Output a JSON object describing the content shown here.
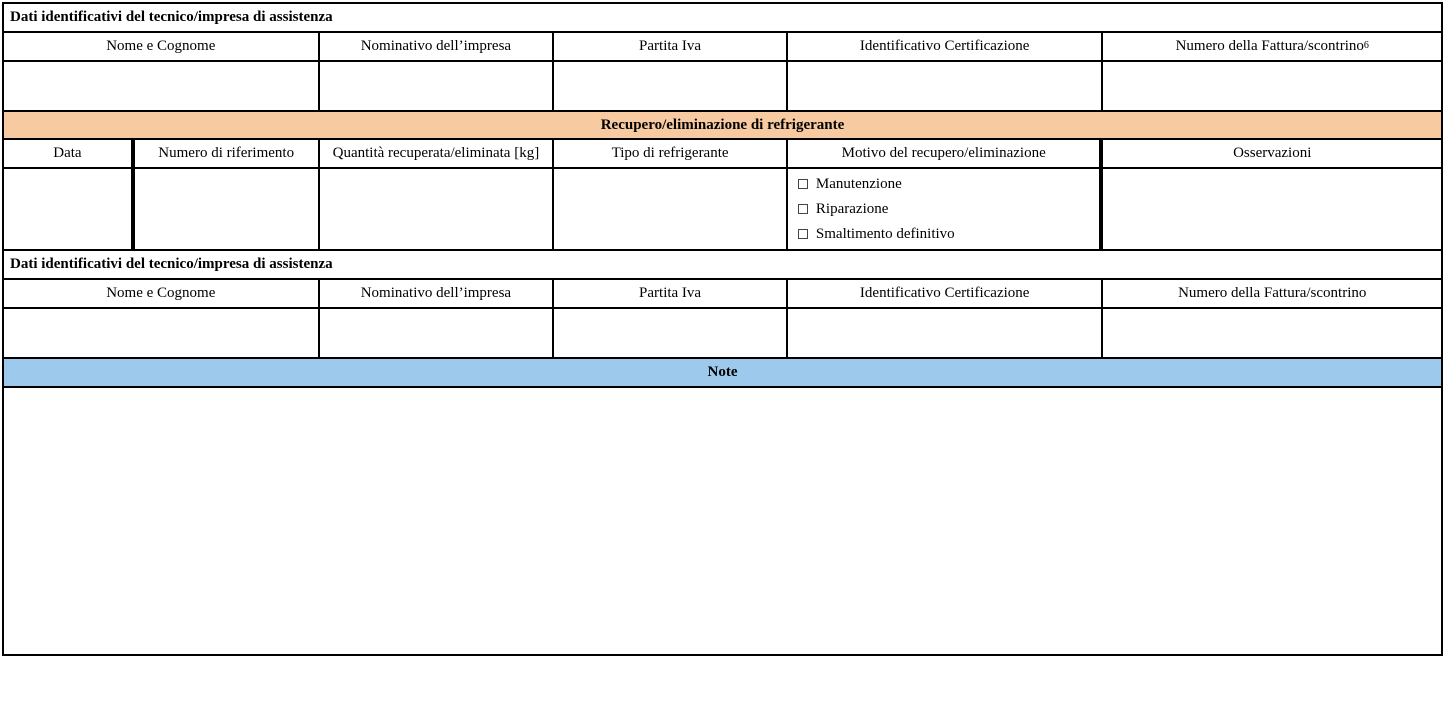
{
  "colors": {
    "section_orange_bg": "#f7caa1",
    "section_blue_bg": "#9cc9ec",
    "border": "#000000",
    "text": "#000000",
    "checkbox_border": "#444444"
  },
  "typography": {
    "font_family": "Times New Roman",
    "base_fontsize_pt": 11,
    "header_weight": "bold"
  },
  "section1": {
    "title": "Dati identificativi del tecnico/impresa di assistenza",
    "columns": [
      "Nome e Cognome",
      "Nominativo dell’impresa",
      "Partita Iva",
      "Identificativo Certificazione",
      "Numero della Fattura/scontrino"
    ],
    "footnote_marker": "6",
    "values": [
      "",
      "",
      "",
      "",
      ""
    ]
  },
  "section2": {
    "title": "Recupero/eliminazione di refrigerante",
    "columns": [
      "Data",
      "Numero di riferimento",
      "Quantità recuperata/eliminata [kg]",
      "Tipo di refrigerante",
      "Motivo del recupero/eliminazione",
      "Osservazioni"
    ],
    "row": {
      "data": "",
      "numero_riferimento": "",
      "quantita_kg": "",
      "tipo_refrigerante": "",
      "osservazioni": ""
    },
    "motivo_options": [
      "Manutenzione",
      "Riparazione",
      "Smaltimento definitivo"
    ]
  },
  "section3": {
    "title": "Dati identificativi del tecnico/impresa di assistenza",
    "columns": [
      "Nome e Cognome",
      "Nominativo dell’impresa",
      "Partita Iva",
      "Identificativo Certificazione",
      "Numero della Fattura/scontrino"
    ],
    "values": [
      "",
      "",
      "",
      "",
      ""
    ]
  },
  "section4": {
    "title": "Note",
    "body": ""
  }
}
